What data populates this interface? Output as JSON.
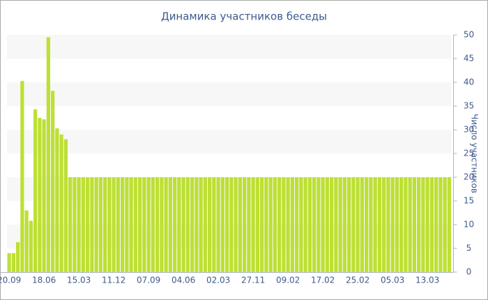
{
  "chart_data": {
    "type": "bar",
    "title": "Динамика участников беседы",
    "y_label": "Число участников",
    "categories": [
      "20.09",
      null,
      null,
      null,
      null,
      null,
      null,
      null,
      "18.06",
      null,
      null,
      null,
      null,
      null,
      null,
      null,
      "15.03",
      null,
      null,
      null,
      null,
      null,
      null,
      null,
      "11.12",
      null,
      null,
      null,
      null,
      null,
      null,
      null,
      "07.09",
      null,
      null,
      null,
      null,
      null,
      null,
      null,
      "04.06",
      null,
      null,
      null,
      null,
      null,
      null,
      null,
      "02.03",
      null,
      null,
      null,
      null,
      null,
      null,
      null,
      "27.11",
      null,
      null,
      null,
      null,
      null,
      null,
      null,
      "09.02",
      null,
      null,
      null,
      null,
      null,
      null,
      null,
      "17.02",
      null,
      null,
      null,
      null,
      null,
      null,
      null,
      "25.02",
      null,
      null,
      null,
      null,
      null,
      null,
      null,
      "05.03",
      null,
      null,
      null,
      null,
      null,
      null,
      null,
      "13.03",
      null,
      null,
      null,
      null,
      null
    ],
    "values": [
      4,
      4,
      6.3,
      40.3,
      13,
      10.8,
      34.3,
      32.5,
      32.2,
      49.5,
      38.2,
      30.3,
      29,
      28,
      20,
      20,
      20,
      20,
      20,
      20,
      20,
      20,
      20,
      20,
      20,
      20,
      20,
      20,
      20,
      20,
      20,
      20,
      20,
      20,
      20,
      20,
      20,
      20,
      20,
      20,
      20,
      20,
      20,
      20,
      20,
      20,
      20,
      20,
      20,
      20,
      20,
      20,
      20,
      20,
      20,
      20,
      20,
      20,
      20,
      20,
      20,
      20,
      20,
      20,
      20,
      20,
      20,
      20,
      20,
      20,
      20,
      20,
      20,
      20,
      20,
      20,
      20,
      20,
      20,
      20,
      20,
      20,
      20,
      20,
      20,
      20,
      20,
      20,
      20,
      20,
      20,
      20,
      20,
      20,
      20,
      20,
      20,
      20,
      20,
      20,
      20,
      20
    ],
    "color": "#bde034",
    "ylim": [
      0,
      50
    ],
    "yticks": [
      0,
      5,
      10,
      15,
      20,
      25,
      30,
      35,
      40,
      45,
      50
    ],
    "y_axis_side": "right",
    "grid": true
  }
}
